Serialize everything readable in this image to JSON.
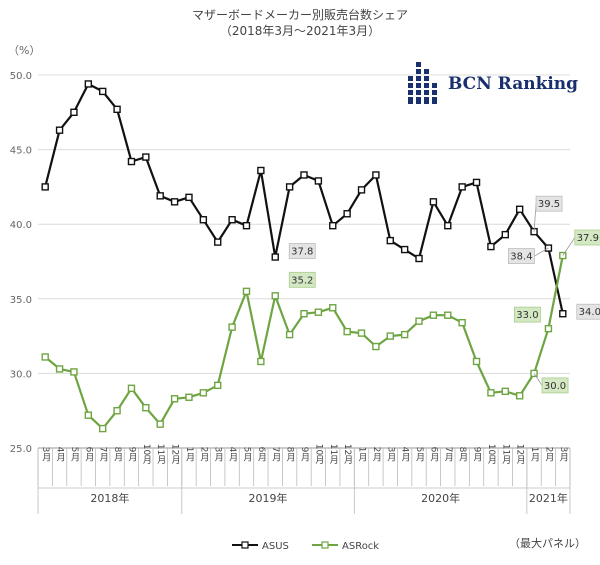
{
  "chart_data": {
    "type": "line",
    "title": "マザーボードメーカー別販売台数シェア",
    "subtitle": "（2018年3月〜2021年3月）",
    "unit": "（%）",
    "note": "（最大パネル）",
    "ylim": [
      25,
      50
    ],
    "yticks": [
      "25.0",
      "30.0",
      "35.0",
      "40.0",
      "45.0",
      "50.0"
    ],
    "categories": [
      "3月",
      "4月",
      "5月",
      "6月",
      "7月",
      "8月",
      "9月",
      "10月",
      "11月",
      "12月",
      "1月",
      "2月",
      "3月",
      "4月",
      "5月",
      "6月",
      "7月",
      "8月",
      "9月",
      "10月",
      "11月",
      "12月",
      "1月",
      "2月",
      "3月",
      "4月",
      "5月",
      "6月",
      "7月",
      "8月",
      "9月",
      "10月",
      "11月",
      "12月",
      "1月",
      "2月",
      "3月"
    ],
    "years": [
      {
        "label": "2018年",
        "from": 0,
        "to": 9
      },
      {
        "label": "2019年",
        "from": 10,
        "to": 21
      },
      {
        "label": "2020年",
        "from": 22,
        "to": 33
      },
      {
        "label": "2021年",
        "from": 34,
        "to": 36
      }
    ],
    "series": [
      {
        "name": "ASUS",
        "color": "#111111",
        "values": [
          42.5,
          46.3,
          47.5,
          49.4,
          48.9,
          47.7,
          44.2,
          44.5,
          41.9,
          41.5,
          41.8,
          40.3,
          38.8,
          40.3,
          39.9,
          43.6,
          37.8,
          42.5,
          43.3,
          42.9,
          39.9,
          40.7,
          42.3,
          43.3,
          38.9,
          38.3,
          37.7,
          41.5,
          39.9,
          42.5,
          42.8,
          38.5,
          39.3,
          41.0,
          39.5,
          38.4,
          34.0
        ]
      },
      {
        "name": "ASRock",
        "color": "#6ea542",
        "values": [
          31.1,
          30.3,
          30.1,
          27.2,
          26.3,
          27.5,
          29.0,
          27.7,
          26.6,
          28.3,
          28.4,
          28.7,
          29.2,
          33.1,
          35.5,
          30.8,
          35.2,
          32.6,
          34.0,
          34.1,
          34.4,
          32.8,
          32.7,
          31.8,
          32.5,
          32.6,
          33.5,
          33.9,
          33.9,
          33.4,
          30.8,
          28.7,
          28.8,
          28.5,
          30.0,
          33.0,
          37.9
        ]
      }
    ],
    "callouts": [
      {
        "series": "ASUS",
        "index": 16,
        "text": "37.8"
      },
      {
        "series": "ASUS",
        "index": 34,
        "text": "39.5"
      },
      {
        "series": "ASUS",
        "index": 35,
        "text": "38.4"
      },
      {
        "series": "ASUS",
        "index": 36,
        "text": "34.0"
      },
      {
        "series": "ASRock",
        "index": 16,
        "text": "35.2"
      },
      {
        "series": "ASRock",
        "index": 34,
        "text": "30.0"
      },
      {
        "series": "ASRock",
        "index": 35,
        "text": "33.0"
      },
      {
        "series": "ASRock",
        "index": 36,
        "text": "37.9"
      }
    ],
    "grid": true,
    "legend": "bottom"
  },
  "logo": {
    "text": "BCN Ranking",
    "color": "#1a2f6e"
  }
}
